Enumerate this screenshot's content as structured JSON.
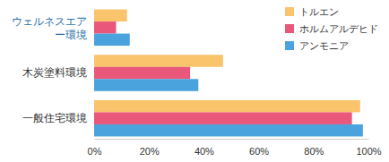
{
  "chart_data": {
    "type": "bar",
    "orientation": "horizontal",
    "categories": [
      "ウェルネスエアー環境",
      "木炭塗料環境",
      "一般住宅環境"
    ],
    "series": [
      {
        "name": "トルエン",
        "color": "#f9c46b",
        "values": [
          12,
          47,
          97
        ]
      },
      {
        "name": "ホルムアルデヒド",
        "color": "#e9587a",
        "values": [
          8,
          35,
          94
        ]
      },
      {
        "name": "アンモニア",
        "color": "#4aa3dc",
        "values": [
          13,
          38,
          98
        ]
      }
    ],
    "xlim": [
      0,
      100
    ],
    "xticks": [
      {
        "value": 0,
        "label": "0%"
      },
      {
        "value": 20,
        "label": "20%"
      },
      {
        "value": 40,
        "label": "40%"
      },
      {
        "value": 60,
        "label": "60%"
      },
      {
        "value": 80,
        "label": "80%"
      },
      {
        "value": 100,
        "label": "100%"
      }
    ],
    "legend": "top-right",
    "grid": false
  }
}
